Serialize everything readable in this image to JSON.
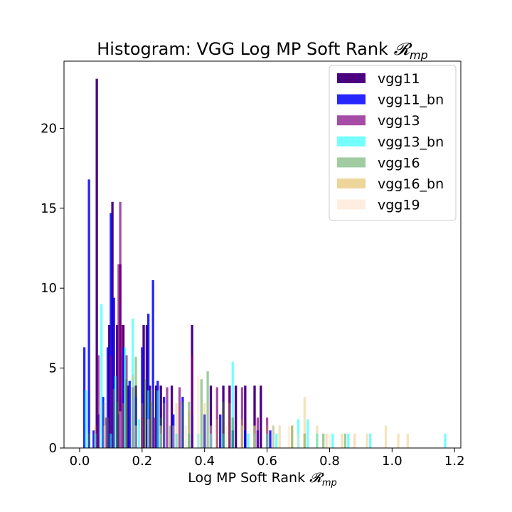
{
  "chart_data": {
    "type": "histogram",
    "title": "Histogram: VGG Log MP Soft Rank ",
    "title_math": "𝓡",
    "title_math_sub": "mp",
    "xlabel": "Log MP Soft Rank ",
    "xlabel_math": "𝓡",
    "xlabel_math_sub": "mp",
    "xlim": [
      -0.05,
      1.22
    ],
    "ylim": [
      0,
      24.2
    ],
    "xticks": [
      0.0,
      0.2,
      0.4,
      0.6,
      0.8,
      1.0,
      1.2
    ],
    "xtick_labels": [
      "0.0",
      "0.2",
      "0.4",
      "0.6",
      "0.8",
      "1.0",
      "1.2"
    ],
    "yticks": [
      0,
      5,
      10,
      15,
      20
    ],
    "ytick_labels": [
      "0",
      "5",
      "10",
      "15",
      "20"
    ],
    "grid": false,
    "legend_position": "top-right",
    "series": [
      {
        "name": "vgg11",
        "color": "#4b0082",
        "alpha": 1.0,
        "bars": [
          [
            0.055,
            23.1
          ],
          [
            0.095,
            7.7
          ],
          [
            0.105,
            15.4
          ],
          [
            0.12,
            7.7
          ],
          [
            0.13,
            11.5
          ],
          [
            0.14,
            7.7
          ],
          [
            0.155,
            3.9
          ],
          [
            0.18,
            3.9
          ],
          [
            0.205,
            7.7
          ],
          [
            0.215,
            7.7
          ],
          [
            0.225,
            3.9
          ],
          [
            0.245,
            3.9
          ],
          [
            0.26,
            3.9
          ],
          [
            0.295,
            3.9
          ],
          [
            0.36,
            7.7
          ],
          [
            0.42,
            3.9
          ],
          [
            0.46,
            3.9
          ],
          [
            0.48,
            3.9
          ],
          [
            0.5,
            3.9
          ],
          [
            0.53,
            3.9
          ],
          [
            0.56,
            3.9
          ],
          [
            0.58,
            3.9
          ]
        ]
      },
      {
        "name": "vgg11_bn",
        "color": "#0000ff",
        "alpha": 0.85,
        "bars": [
          [
            0.015,
            6.3
          ],
          [
            0.03,
            16.8
          ],
          [
            0.045,
            1.1
          ],
          [
            0.06,
            2.1
          ],
          [
            0.075,
            3.2
          ],
          [
            0.09,
            6.3
          ],
          [
            0.1,
            14.7
          ],
          [
            0.11,
            9.4
          ],
          [
            0.125,
            2.1
          ],
          [
            0.13,
            3.2
          ],
          [
            0.14,
            6.3
          ],
          [
            0.16,
            4.2
          ],
          [
            0.18,
            3.2
          ],
          [
            0.2,
            6.3
          ],
          [
            0.22,
            8.4
          ],
          [
            0.235,
            10.5
          ],
          [
            0.25,
            4.2
          ],
          [
            0.27,
            3.2
          ],
          [
            0.3,
            2.1
          ],
          [
            0.33,
            3.2
          ],
          [
            0.36,
            2.1
          ],
          [
            0.4,
            2.1
          ],
          [
            0.45,
            2.1
          ],
          [
            0.49,
            1.1
          ],
          [
            0.53,
            1.1
          ],
          [
            0.57,
            1.1
          ],
          [
            0.61,
            1.1
          ]
        ]
      },
      {
        "name": "vgg13",
        "color": "#800080",
        "alpha": 0.7,
        "bars": [
          [
            0.06,
            5.8
          ],
          [
            0.085,
            1.9
          ],
          [
            0.1,
            5.8
          ],
          [
            0.125,
            11.5
          ],
          [
            0.13,
            15.4
          ],
          [
            0.135,
            7.7
          ],
          [
            0.15,
            5.8
          ],
          [
            0.17,
            3.8
          ],
          [
            0.2,
            1.9
          ],
          [
            0.24,
            1.9
          ],
          [
            0.28,
            3.8
          ],
          [
            0.32,
            3.8
          ],
          [
            0.36,
            5.8
          ],
          [
            0.44,
            3.8
          ],
          [
            0.48,
            3.8
          ],
          [
            0.52,
            3.8
          ],
          [
            0.57,
            1.9
          ],
          [
            0.6,
            1.9
          ]
        ]
      },
      {
        "name": "vgg13_bn",
        "color": "#00ffff",
        "alpha": 0.55,
        "bars": [
          [
            0.02,
            3.6
          ],
          [
            0.05,
            0.9
          ],
          [
            0.07,
            9.0
          ],
          [
            0.1,
            0.9
          ],
          [
            0.115,
            4.5
          ],
          [
            0.145,
            6.3
          ],
          [
            0.17,
            8.1
          ],
          [
            0.19,
            1.8
          ],
          [
            0.22,
            3.6
          ],
          [
            0.25,
            3.6
          ],
          [
            0.26,
            0.9
          ],
          [
            0.31,
            0.9
          ],
          [
            0.35,
            0.9
          ],
          [
            0.38,
            0.9
          ],
          [
            0.42,
            0.9
          ],
          [
            0.46,
            0.9
          ],
          [
            0.49,
            5.4
          ],
          [
            0.54,
            0.9
          ],
          [
            0.56,
            0.9
          ],
          [
            0.6,
            0.9
          ],
          [
            0.63,
            0.9
          ],
          [
            0.7,
            1.8
          ],
          [
            0.73,
            1.8
          ],
          [
            0.76,
            0.9
          ],
          [
            0.81,
            0.9
          ],
          [
            0.86,
            0.9
          ],
          [
            0.93,
            0.9
          ],
          [
            1.17,
            0.9
          ]
        ]
      },
      {
        "name": "vgg16",
        "color": "#2e8b2e",
        "alpha": 0.45,
        "bars": [
          [
            0.03,
            0.9
          ],
          [
            0.09,
            1.9
          ],
          [
            0.12,
            2.9
          ],
          [
            0.15,
            4.3
          ],
          [
            0.18,
            5.7
          ],
          [
            0.21,
            4.3
          ],
          [
            0.23,
            2.9
          ],
          [
            0.26,
            1.9
          ],
          [
            0.29,
            1.4
          ],
          [
            0.33,
            2.9
          ],
          [
            0.35,
            2.9
          ],
          [
            0.39,
            4.3
          ],
          [
            0.41,
            4.8
          ],
          [
            0.46,
            2.9
          ],
          [
            0.49,
            1.9
          ],
          [
            0.52,
            1.4
          ],
          [
            0.56,
            1.4
          ],
          [
            0.62,
            1.4
          ],
          [
            0.68,
            1.4
          ],
          [
            0.72,
            0.9
          ],
          [
            0.78,
            0.9
          ],
          [
            0.85,
            0.9
          ]
        ]
      },
      {
        "name": "vgg16_bn",
        "color": "#daa520",
        "alpha": 0.3,
        "bars": [
          [
            0.05,
            1.4
          ],
          [
            0.08,
            2.8
          ],
          [
            0.11,
            3.7
          ],
          [
            0.14,
            2.8
          ],
          [
            0.17,
            4.6
          ],
          [
            0.2,
            2.8
          ],
          [
            0.23,
            3.7
          ],
          [
            0.27,
            2.8
          ],
          [
            0.31,
            2.8
          ],
          [
            0.35,
            2.3
          ],
          [
            0.4,
            2.8
          ],
          [
            0.44,
            1.8
          ],
          [
            0.48,
            2.8
          ],
          [
            0.52,
            1.8
          ],
          [
            0.56,
            1.4
          ],
          [
            0.6,
            1.4
          ],
          [
            0.64,
            1.4
          ],
          [
            0.68,
            1.4
          ],
          [
            0.72,
            3.2
          ],
          [
            0.76,
            1.4
          ],
          [
            0.79,
            0.9
          ],
          [
            0.84,
            0.9
          ],
          [
            0.88,
            0.9
          ],
          [
            0.92,
            0.9
          ],
          [
            0.98,
            1.4
          ],
          [
            1.02,
            0.9
          ],
          [
            1.05,
            0.9
          ]
        ]
      },
      {
        "name": "vgg19",
        "color": "#ffdab9",
        "alpha": 0.45,
        "bars": [
          [
            0.08,
            1.4
          ],
          [
            0.13,
            2.3
          ],
          [
            0.18,
            1.4
          ],
          [
            0.22,
            1.8
          ],
          [
            0.26,
            1.4
          ],
          [
            0.3,
            1.4
          ],
          [
            0.34,
            1.4
          ],
          [
            0.38,
            4.5
          ],
          [
            0.42,
            1.4
          ],
          [
            0.47,
            1.4
          ],
          [
            0.52,
            1.4
          ],
          [
            0.56,
            1.4
          ],
          [
            0.62,
            1.4
          ],
          [
            0.67,
            1.4
          ],
          [
            0.7,
            0.9
          ],
          [
            0.8,
            0.9
          ],
          [
            0.88,
            0.9
          ]
        ]
      }
    ],
    "bar_width": 0.0075
  }
}
